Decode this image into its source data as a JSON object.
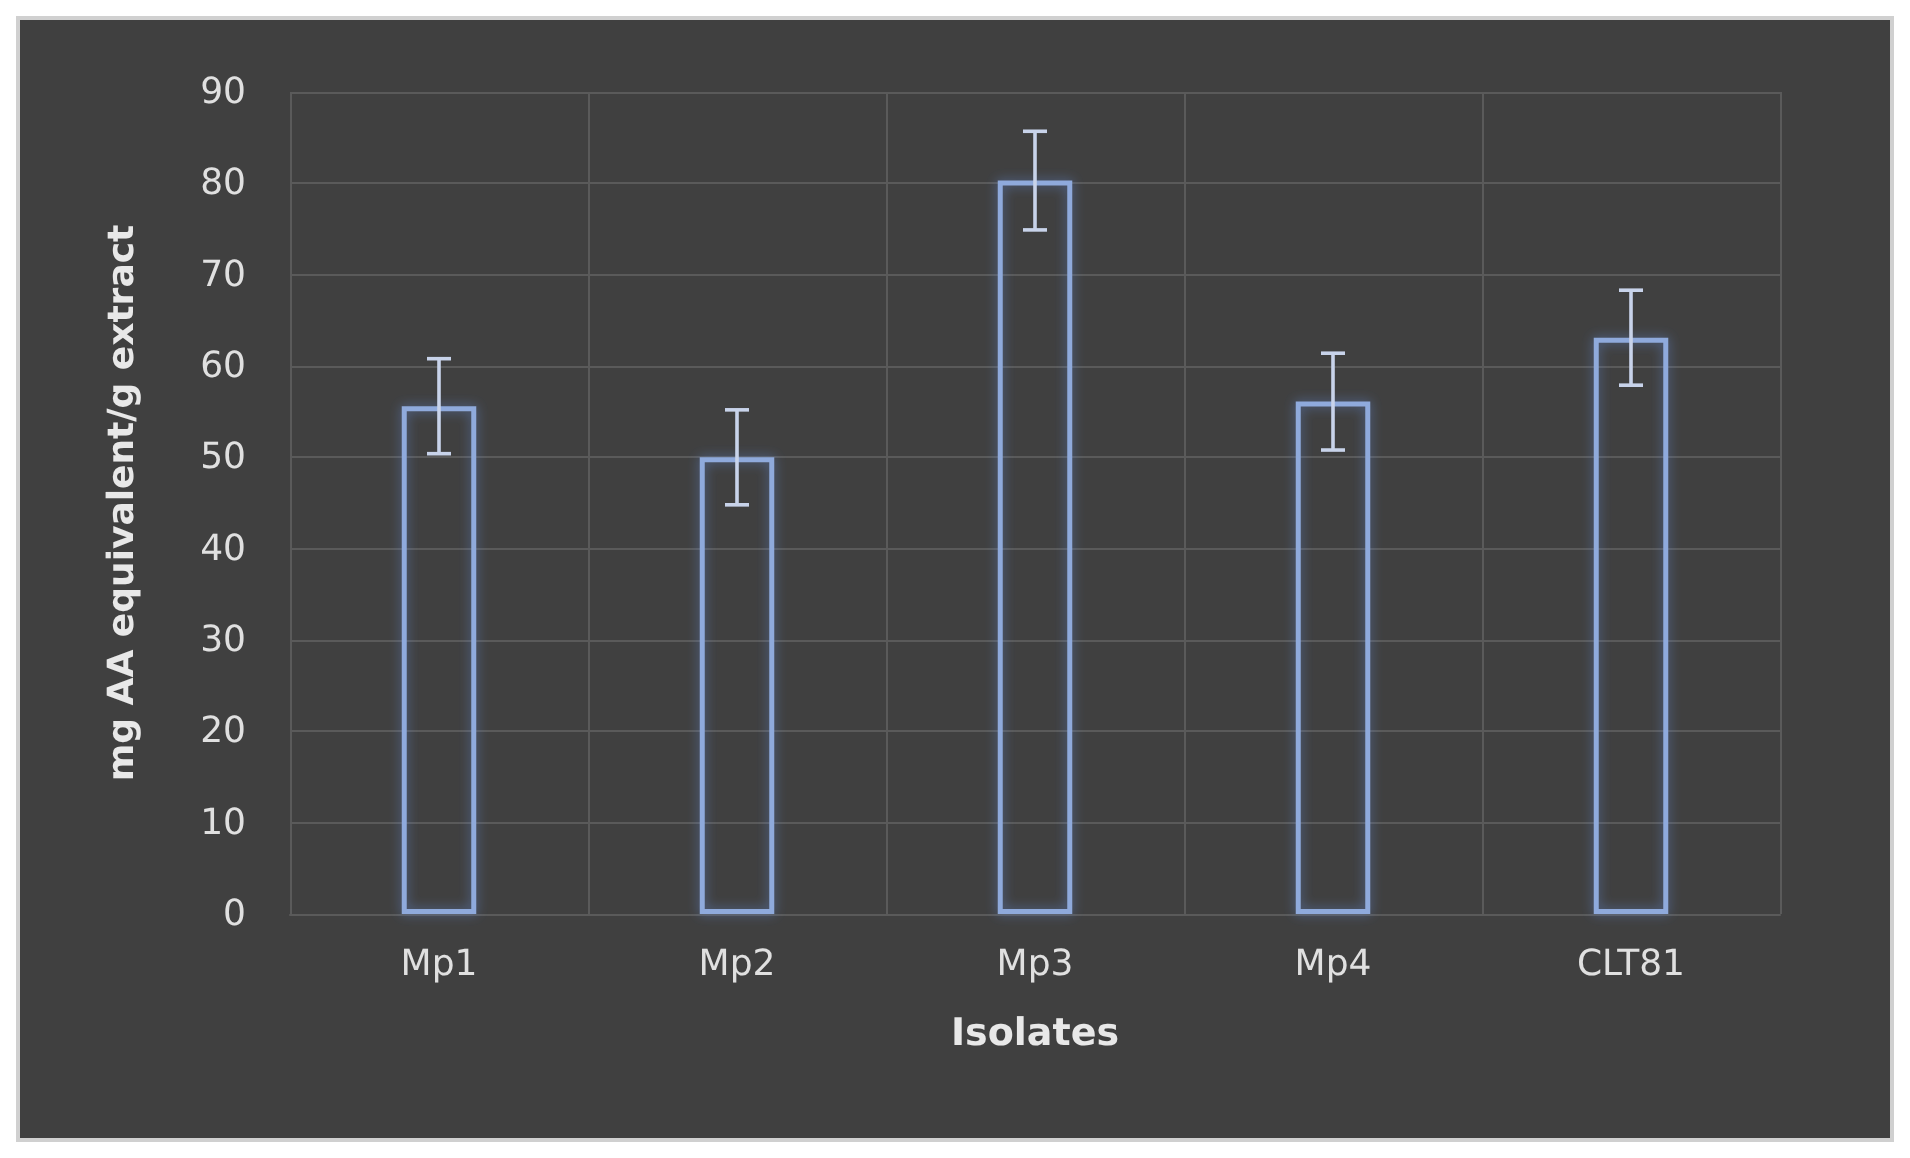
{
  "chart_data": {
    "type": "bar",
    "xlabel": "Isolates",
    "ylabel": "mg AA equivalent/g extract",
    "categories": [
      "Mp1",
      "Mp2",
      "Mp3",
      "Mp4",
      "CLT81"
    ],
    "values": [
      55.6,
      50.0,
      80.3,
      56.1,
      63.1
    ],
    "errors": [
      5.2,
      5.2,
      5.4,
      5.3,
      5.2
    ],
    "color": "#8faadc",
    "ylim": [
      0,
      90
    ],
    "yticks": [
      0,
      10,
      20,
      30,
      40,
      50,
      60,
      70,
      80,
      90
    ],
    "grid": true
  }
}
